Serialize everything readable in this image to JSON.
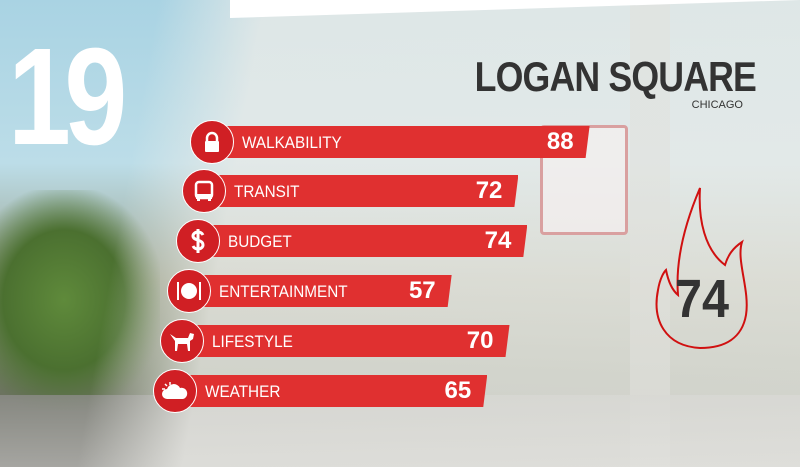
{
  "rank": "19",
  "neighborhood": "LOGAN SQUARE",
  "city": "CHICAGO",
  "overall_score": "74",
  "accent_color": "#e03030",
  "chart_data": {
    "type": "bar",
    "orientation": "horizontal",
    "categories": [
      "WALKABILITY",
      "TRANSIT",
      "BUDGET",
      "ENTERTAINMENT",
      "LIFESTYLE",
      "WEATHER"
    ],
    "values": [
      88,
      72,
      74,
      57,
      70,
      65
    ],
    "icons": [
      "lock-icon",
      "bus-icon",
      "dollar-icon",
      "plate-icon",
      "dog-icon",
      "weather-icon"
    ],
    "xlim": [
      0,
      100
    ]
  }
}
